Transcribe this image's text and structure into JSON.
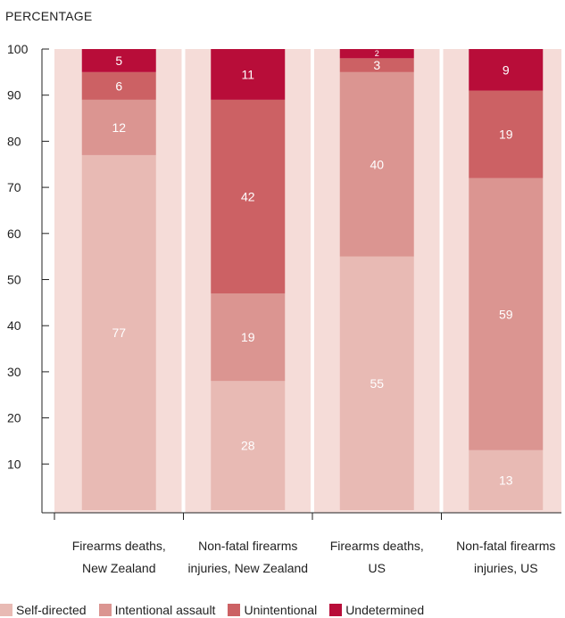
{
  "chart_data": {
    "type": "bar",
    "stacked": true,
    "ylabel": "PERCENTAGE",
    "ylim": [
      0,
      100
    ],
    "yticks": [
      10,
      20,
      30,
      40,
      50,
      60,
      70,
      80,
      90,
      100
    ],
    "grid": false,
    "legend_position": "bottom",
    "categories": [
      [
        "Firearms deaths,",
        "New Zealand"
      ],
      [
        "Non-fatal firearms",
        "injuries, New Zealand"
      ],
      [
        "Firearms deaths,",
        "US"
      ],
      [
        "Non-fatal firearms",
        "injuries, US"
      ]
    ],
    "series": [
      {
        "name": "Self-directed",
        "color": "#e8bab4",
        "values": [
          77,
          28,
          55,
          13
        ]
      },
      {
        "name": "Intentional assault",
        "color": "#db9591",
        "values": [
          12,
          19,
          40,
          59
        ]
      },
      {
        "name": "Unintentional",
        "color": "#cc6164",
        "values": [
          6,
          42,
          3,
          19
        ]
      },
      {
        "name": "Undetermined",
        "color": "#b80d39",
        "values": [
          5,
          11,
          2,
          9
        ]
      }
    ],
    "colors": {
      "plot_background": "#f5dcd8",
      "gap": "#ffffff"
    }
  }
}
